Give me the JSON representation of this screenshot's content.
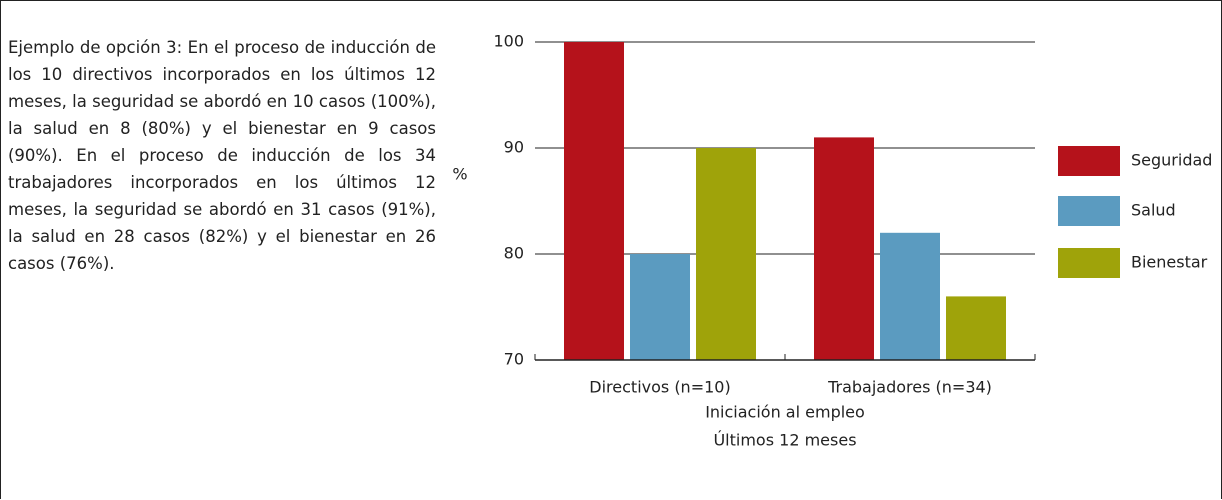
{
  "text": "Ejemplo de opción 3: En el proceso de inducción de los 10 directivos incorporados en los últimos 12 meses, la seguridad se abordó en 10 casos (100%), la salud en 8 (80%) y el bienestar en 9 casos (90%). En el proceso de inducción de los 34 trabajadores incorporados en los últimos 12 meses, la seguridad se abordó en 31 casos (91%), la salud en 28 casos (82%) y el bienestar en 26 casos (76%).",
  "chart_data": {
    "type": "bar",
    "ylabel": "%",
    "xlabel": [
      "Iniciación al empleo",
      "Últimos 12 meses"
    ],
    "categories": [
      "Directivos (n=10)",
      "Trabajadores (n=34)"
    ],
    "series": [
      {
        "name": "Seguridad",
        "color": "#b5121b",
        "values": [
          100,
          91
        ]
      },
      {
        "name": "Salud",
        "color": "#5b9bc0",
        "values": [
          80,
          82
        ]
      },
      {
        "name": "Bienestar",
        "color": "#9fa30a",
        "values": [
          90,
          76
        ]
      }
    ],
    "ylim": [
      70,
      100
    ],
    "yticks": [
      70,
      80,
      90,
      100
    ],
    "grid": true,
    "legend": "right"
  }
}
